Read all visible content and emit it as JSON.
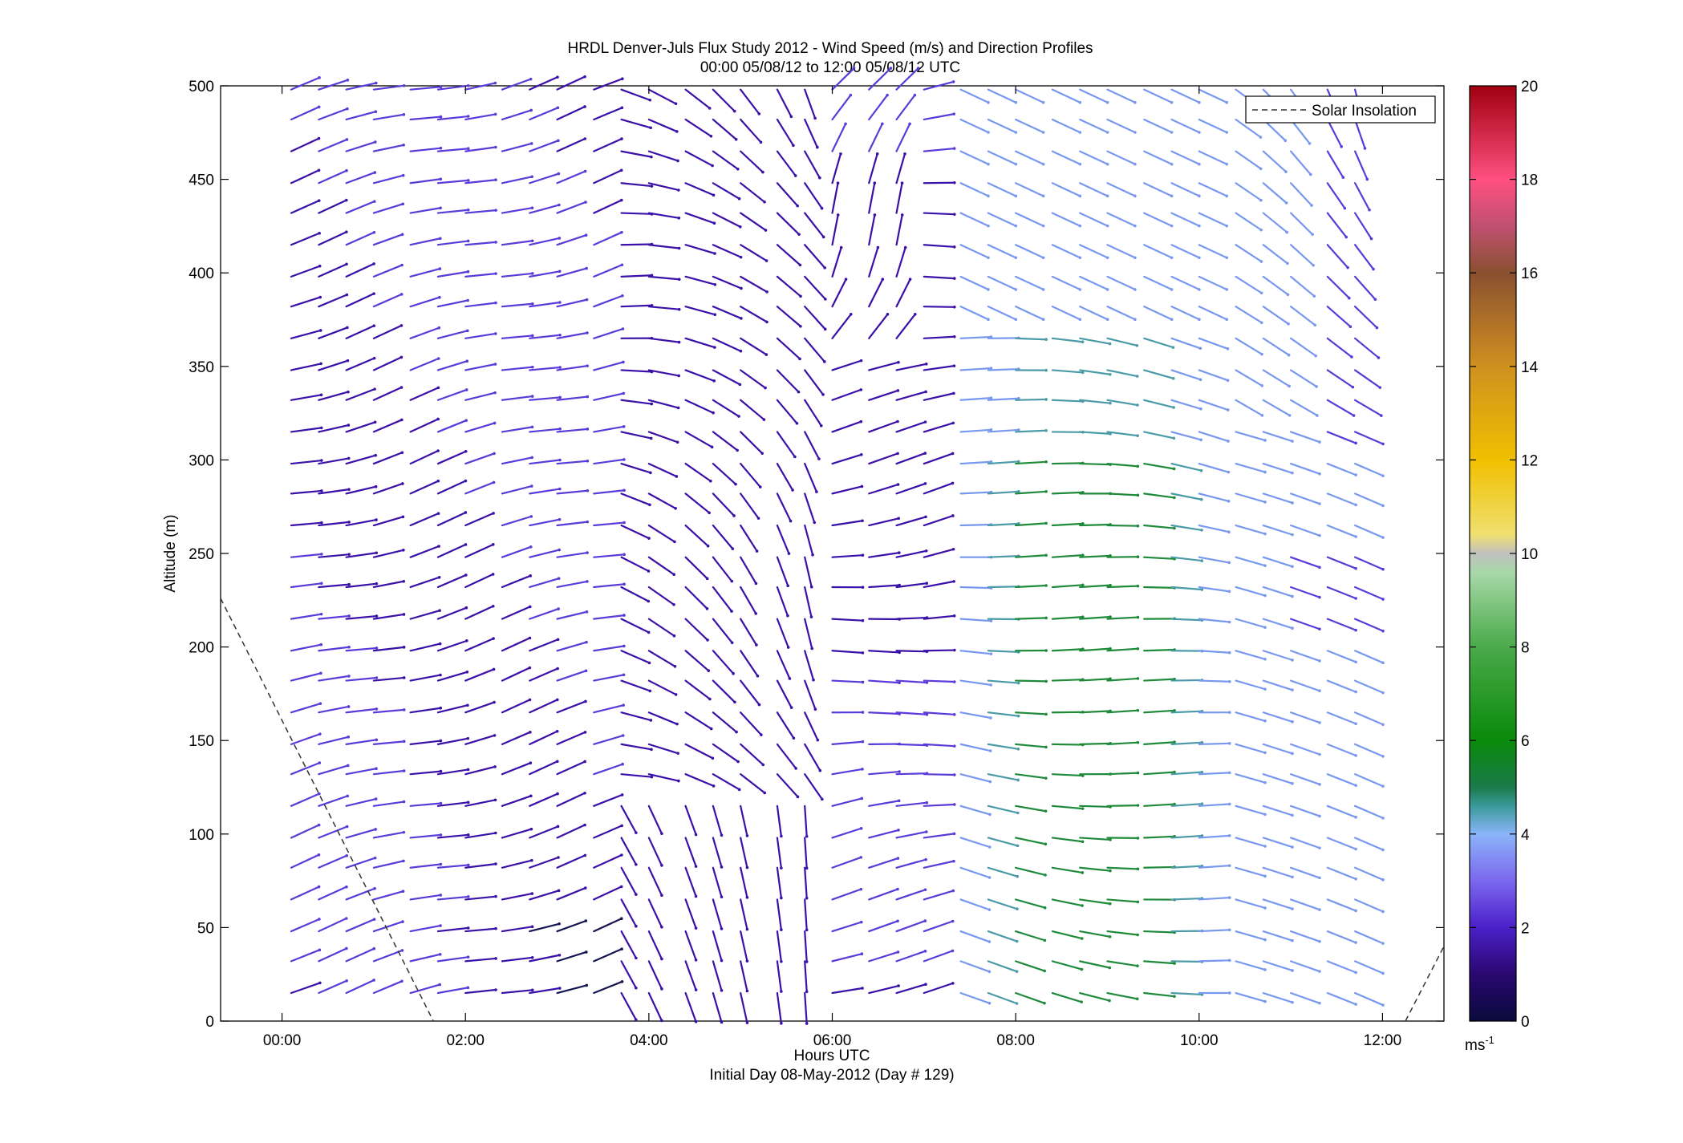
{
  "chart_data": {
    "type": "quiver",
    "title": "HRDL Denver-Juls Flux Study 2012 - Wind Speed (m/s) and Direction Profiles",
    "subtitle": "00:00 05/08/12 to 12:00 05/08/12  UTC",
    "xlabel": "Hours UTC",
    "xlabel2": "Initial Day 08-May-2012 (Day # 129)",
    "ylabel": "Altitude (m)",
    "x_range_hours": [
      -0.67,
      12.67
    ],
    "ylim": [
      0,
      500
    ],
    "x_ticks": [
      "00:00",
      "02:00",
      "04:00",
      "06:00",
      "08:00",
      "10:00",
      "12:00"
    ],
    "x_tick_hours": [
      0,
      2,
      4,
      6,
      8,
      10,
      12
    ],
    "y_ticks": [
      0,
      50,
      100,
      150,
      200,
      250,
      300,
      350,
      400,
      450,
      500
    ],
    "legend": {
      "entries": [
        "Solar Insolation"
      ],
      "position": "top-right"
    },
    "colorbar": {
      "ticks": [
        0,
        2,
        4,
        6,
        8,
        10,
        12,
        14,
        16,
        18,
        20
      ],
      "unit_label": "ms",
      "unit_exponent": "-1",
      "range": [
        0,
        20
      ]
    },
    "solar_insolation": [
      {
        "x": -0.67,
        "y": 226
      },
      {
        "x": 1.65,
        "y": 0
      },
      {
        "x": 12.25,
        "y": 0
      },
      {
        "x": 12.67,
        "y": 40
      }
    ],
    "wind_field": {
      "time_hours": [
        0.1,
        0.4,
        0.7,
        1.0,
        1.4,
        1.7,
        2.0,
        2.4,
        2.7,
        3.0,
        3.4,
        3.7,
        4.0,
        4.4,
        4.7,
        5.0,
        5.4,
        5.7,
        6.0,
        6.4,
        6.7,
        7.0,
        7.4,
        7.7,
        8.0,
        8.4,
        8.7,
        9.0,
        9.4,
        9.7,
        10.0,
        10.4,
        10.7,
        11.0,
        11.4,
        11.7
      ],
      "altitudes_m": [
        15,
        32,
        48,
        65,
        82,
        98,
        115,
        132,
        148,
        165,
        182,
        198,
        215,
        232,
        248,
        265,
        282,
        298,
        315,
        332,
        348,
        365,
        382,
        398,
        415,
        432,
        448,
        465,
        482,
        498
      ],
      "speed_range_ms": [
        0.5,
        8
      ],
      "note_regimes": [
        {
          "from_h": 0,
          "to_h": 3.6,
          "direction": "easterly / north-easterly",
          "speed_ms": 2.5
        },
        {
          "from_h": 3.6,
          "to_h": 6.0,
          "direction": "north-westerly to northerly, light",
          "speed_ms": 1.2
        },
        {
          "from_h": 6.0,
          "to_h": 7.3,
          "direction": "westerly",
          "speed_ms": 1.8
        },
        {
          "from_h": 7.3,
          "to_h": 10.2,
          "direction": "westerly, strengthening",
          "speed_ms": 5.5
        },
        {
          "from_h": 10.2,
          "to_h": 12.0,
          "direction": "veering to southerly aloft",
          "speed_ms": 3.5
        }
      ]
    }
  }
}
